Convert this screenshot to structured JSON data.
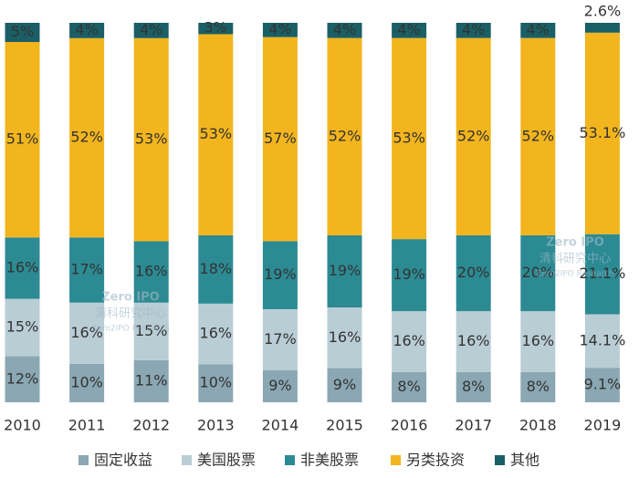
{
  "chart_data": {
    "type": "bar",
    "stack": "percent",
    "categories": [
      "2010",
      "2011",
      "2012",
      "2013",
      "2014",
      "2015",
      "2016",
      "2017",
      "2018",
      "2019"
    ],
    "series": [
      {
        "name": "固定收益",
        "color": "#8aa7b3",
        "values": [
          12,
          10,
          11,
          10,
          9,
          9,
          8,
          8,
          8,
          9.1
        ],
        "value_labels": [
          "12%",
          "10%",
          "11%",
          "10%",
          "9%",
          "9%",
          "8%",
          "8%",
          "8%",
          "9.1%"
        ]
      },
      {
        "name": "美国股票",
        "color": "#b9cdd5",
        "values": [
          15,
          16,
          15,
          16,
          17,
          16,
          16,
          16,
          16,
          14.1
        ],
        "value_labels": [
          "15%",
          "16%",
          "15%",
          "16%",
          "17%",
          "16%",
          "16%",
          "16%",
          "16%",
          "14.1%"
        ]
      },
      {
        "name": "非美股票",
        "color": "#2c8a93",
        "values": [
          16,
          17,
          16,
          18,
          19,
          19,
          19,
          20,
          20,
          21.1
        ],
        "value_labels": [
          "16%",
          "17%",
          "16%",
          "18%",
          "19%",
          "19%",
          "19%",
          "20%",
          "20%",
          "21.1%"
        ]
      },
      {
        "name": "另类投资",
        "color": "#f2b51e",
        "values": [
          51,
          52,
          53,
          53,
          57,
          52,
          53,
          52,
          52,
          53.1
        ],
        "value_labels": [
          "51%",
          "52%",
          "53%",
          "53%",
          "57%",
          "52%",
          "53%",
          "52%",
          "52%",
          "53.1%"
        ]
      },
      {
        "name": "其他",
        "color": "#1b5f66",
        "values": [
          5,
          4,
          4,
          3,
          4,
          4,
          4,
          4,
          4,
          2.6
        ],
        "value_labels": [
          "5%",
          "4%",
          "4%",
          "3%",
          "4%",
          "4%",
          "4%",
          "4%",
          "4%",
          "2.6%"
        ]
      }
    ],
    "watermark": [
      "Zero IPO",
      "清科研究中心",
      "Zero2IPO Research"
    ],
    "legend": "bottom"
  }
}
